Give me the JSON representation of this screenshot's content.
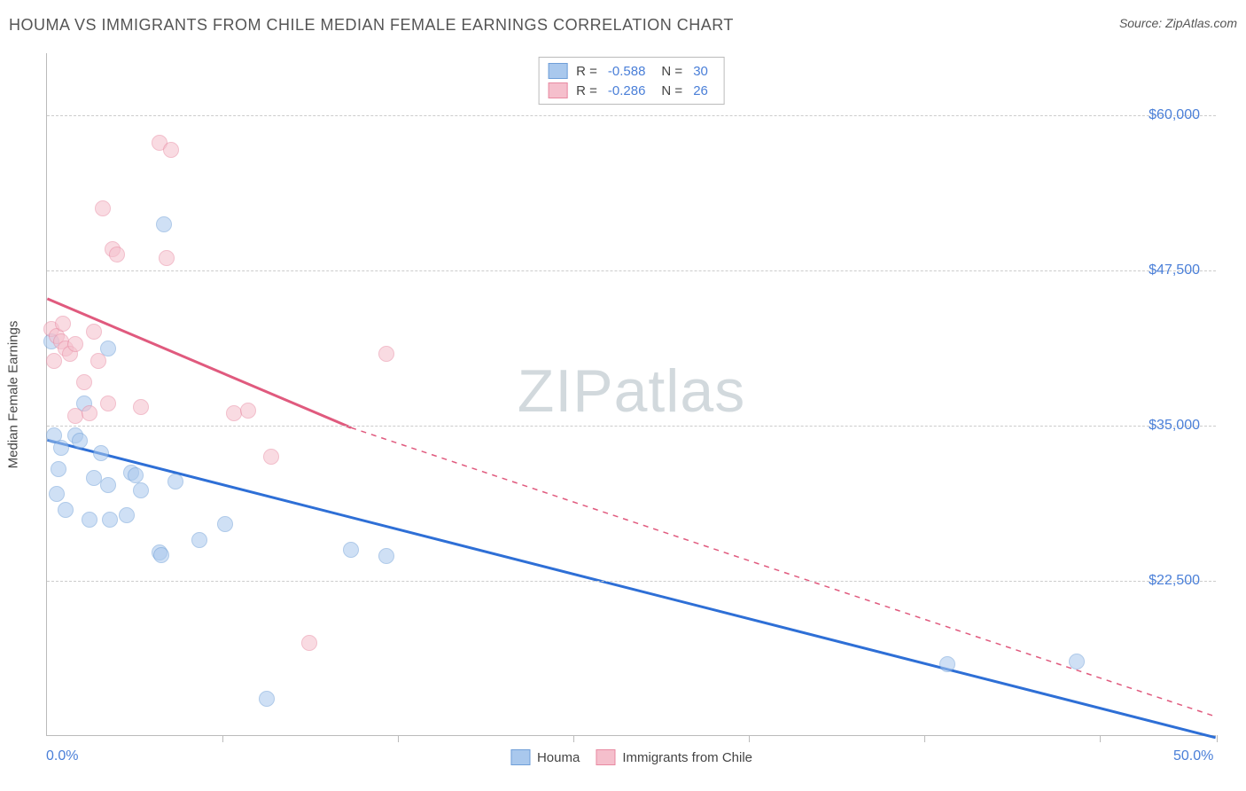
{
  "title": "HOUMA VS IMMIGRANTS FROM CHILE MEDIAN FEMALE EARNINGS CORRELATION CHART",
  "source": "Source: ZipAtlas.com",
  "watermark_1": "ZIP",
  "watermark_2": "atlas",
  "chart": {
    "type": "scatter",
    "y_axis_title": "Median Female Earnings",
    "xlim": [
      0,
      50
    ],
    "ylim": [
      10000,
      65000
    ],
    "x_min_label": "0.0%",
    "x_max_label": "50.0%",
    "x_tick_positions": [
      7.5,
      15,
      22.5,
      30,
      37.5,
      45,
      50
    ],
    "y_gridlines": [
      22500,
      35000,
      47500,
      60000
    ],
    "y_tick_labels": [
      "$22,500",
      "$35,000",
      "$47,500",
      "$60,000"
    ],
    "background_color": "#ffffff",
    "grid_color": "#cccccc",
    "axis_color": "#bbbbbb",
    "tick_label_color": "#4a7fd8",
    "marker_radius": 9,
    "marker_opacity": 0.55,
    "series": [
      {
        "name": "Houma",
        "fill": "#a9c8ed",
        "stroke": "#6f9fd8",
        "r_label": "R =",
        "r_value": "-0.588",
        "n_label": "N =",
        "n_value": "30",
        "trend": {
          "x1": 0,
          "y1": 33800,
          "x2": 50,
          "y2": 9800,
          "color": "#2e6fd6",
          "width": 3,
          "dash": null,
          "extra_dash": null
        },
        "points": [
          [
            0.2,
            41800
          ],
          [
            0.3,
            34200
          ],
          [
            0.6,
            33200
          ],
          [
            0.5,
            31500
          ],
          [
            0.4,
            29500
          ],
          [
            1.2,
            34200
          ],
          [
            1.4,
            33800
          ],
          [
            1.6,
            36800
          ],
          [
            2.3,
            32800
          ],
          [
            2.0,
            30800
          ],
          [
            0.8,
            28200
          ],
          [
            1.8,
            27400
          ],
          [
            2.6,
            30200
          ],
          [
            2.7,
            27400
          ],
          [
            3.4,
            27800
          ],
          [
            3.6,
            31200
          ],
          [
            3.8,
            31000
          ],
          [
            4.0,
            29800
          ],
          [
            2.6,
            41200
          ],
          [
            4.8,
            24800
          ],
          [
            4.9,
            24600
          ],
          [
            5.0,
            51200
          ],
          [
            6.5,
            25800
          ],
          [
            7.6,
            27100
          ],
          [
            9.4,
            13000
          ],
          [
            13.0,
            25000
          ],
          [
            14.5,
            24500
          ],
          [
            38.5,
            15800
          ],
          [
            44.0,
            16000
          ],
          [
            5.5,
            30500
          ]
        ]
      },
      {
        "name": "Immigrants from Chile",
        "fill": "#f5bfcc",
        "stroke": "#e88aa2",
        "r_label": "R =",
        "r_value": "-0.286",
        "n_label": "N =",
        "n_value": "26",
        "trend": {
          "x1": 0,
          "y1": 45200,
          "x2": 13,
          "y2": 34800,
          "color": "#e05a7e",
          "width": 3,
          "dash": null,
          "extra_dash": {
            "x1": 13,
            "y1": 34800,
            "x2": 50,
            "y2": 11500
          }
        },
        "points": [
          [
            0.2,
            42800
          ],
          [
            0.4,
            42200
          ],
          [
            0.6,
            41800
          ],
          [
            0.8,
            41200
          ],
          [
            0.7,
            43200
          ],
          [
            1.0,
            40800
          ],
          [
            1.2,
            41600
          ],
          [
            0.3,
            40200
          ],
          [
            1.2,
            35800
          ],
          [
            1.8,
            36000
          ],
          [
            1.6,
            38500
          ],
          [
            2.0,
            42600
          ],
          [
            2.2,
            40200
          ],
          [
            2.6,
            36800
          ],
          [
            2.4,
            52500
          ],
          [
            2.8,
            49200
          ],
          [
            3.0,
            48800
          ],
          [
            4.0,
            36500
          ],
          [
            4.8,
            57800
          ],
          [
            5.1,
            48500
          ],
          [
            5.3,
            57200
          ],
          [
            8.0,
            36000
          ],
          [
            8.6,
            36200
          ],
          [
            9.6,
            32500
          ],
          [
            11.2,
            17500
          ],
          [
            14.5,
            40800
          ]
        ]
      }
    ]
  }
}
